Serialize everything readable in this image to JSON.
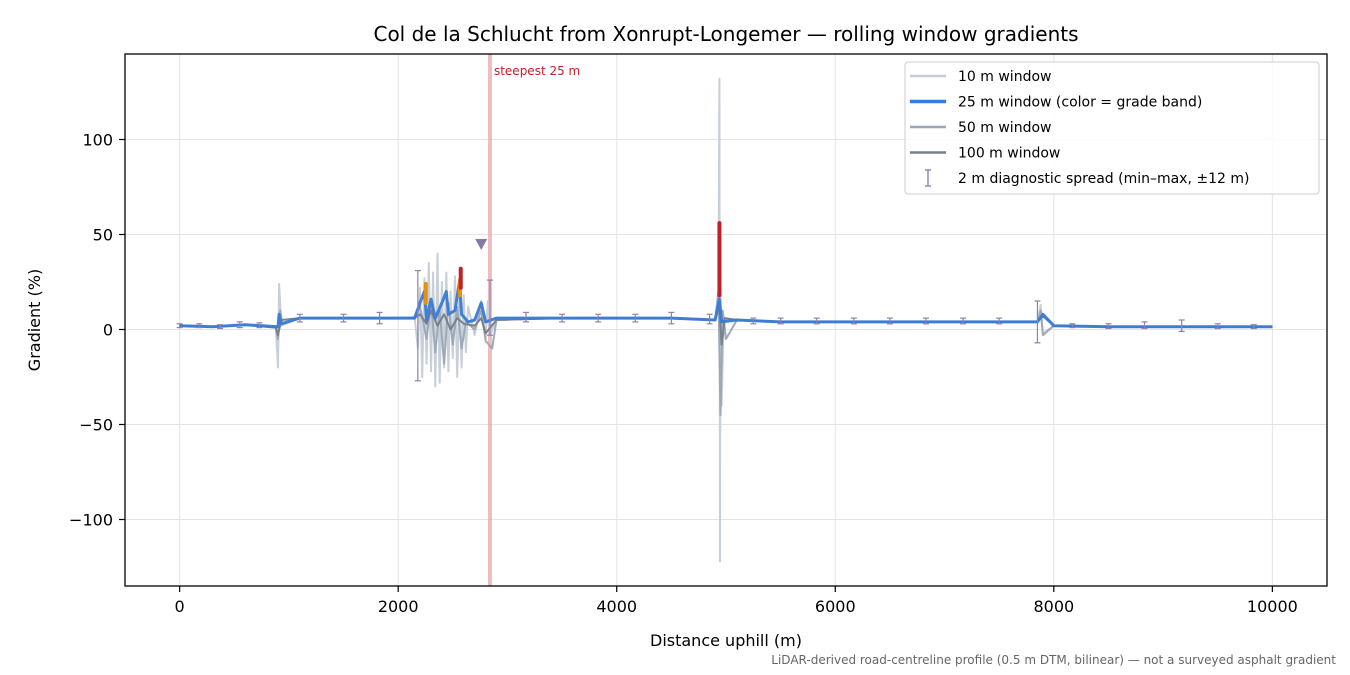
{
  "chart_data": {
    "type": "line",
    "title": "Col de la Schlucht from Xonrupt-Longemer — rolling window gradients",
    "xlabel": "Distance uphill (m)",
    "ylabel": "Gradient (%)",
    "xlim": [
      -500,
      10500
    ],
    "ylim": [
      -135,
      145
    ],
    "xticks": [
      0,
      2000,
      4000,
      6000,
      8000,
      10000
    ],
    "xtick_labels": [
      "0",
      "2000",
      "4000",
      "6000",
      "8000",
      "10000"
    ],
    "yticks": [
      100,
      50,
      0,
      -50,
      -100
    ],
    "ytick_labels": [
      "100",
      "50",
      "0",
      "−50",
      "−100"
    ],
    "grid": true,
    "legend_position": "top-right",
    "footnote": "LiDAR-derived road-centreline profile (0.5 m DTM, bilinear) — not a surveyed asphalt gradient",
    "annotations": [
      {
        "text": "steepest 25 m",
        "x": 2840,
        "type": "vertical-band",
        "color": "#e8a0a8"
      },
      {
        "text": "",
        "x": 2760,
        "y": 45,
        "type": "triangle-marker",
        "color": "#8878a8"
      }
    ],
    "series": [
      {
        "name": "10 m window",
        "color": "#c4ccd6",
        "width": 2,
        "points": [
          [
            0,
            2
          ],
          [
            300,
            1.5
          ],
          [
            600,
            2.5
          ],
          [
            880,
            1
          ],
          [
            900,
            -20
          ],
          [
            910,
            24
          ],
          [
            930,
            2
          ],
          [
            1100,
            6
          ],
          [
            1500,
            6
          ],
          [
            1900,
            6
          ],
          [
            2150,
            6.5
          ],
          [
            2180,
            -10
          ],
          [
            2200,
            22
          ],
          [
            2220,
            -25
          ],
          [
            2240,
            27
          ],
          [
            2260,
            -18
          ],
          [
            2280,
            35
          ],
          [
            2300,
            -22
          ],
          [
            2320,
            30
          ],
          [
            2340,
            -30
          ],
          [
            2360,
            40
          ],
          [
            2380,
            -28
          ],
          [
            2400,
            25
          ],
          [
            2420,
            -20
          ],
          [
            2440,
            30
          ],
          [
            2460,
            -22
          ],
          [
            2480,
            20
          ],
          [
            2500,
            -15
          ],
          [
            2520,
            28
          ],
          [
            2540,
            -25
          ],
          [
            2560,
            22
          ],
          [
            2580,
            -20
          ],
          [
            2600,
            18
          ],
          [
            2620,
            -12
          ],
          [
            2640,
            12
          ],
          [
            2700,
            -3
          ],
          [
            2760,
            15
          ],
          [
            2800,
            -5
          ],
          [
            2820,
            15
          ],
          [
            2850,
            -2
          ],
          [
            2900,
            6
          ],
          [
            3500,
            6
          ],
          [
            4000,
            6
          ],
          [
            4500,
            6
          ],
          [
            4900,
            5
          ],
          [
            4930,
            10
          ],
          [
            4940,
            132
          ],
          [
            4945,
            -122
          ],
          [
            4950,
            30
          ],
          [
            4960,
            -40
          ],
          [
            4980,
            6
          ],
          [
            5100,
            5
          ],
          [
            5500,
            4
          ],
          [
            6000,
            4
          ],
          [
            6500,
            4
          ],
          [
            7000,
            4
          ],
          [
            7500,
            4
          ],
          [
            7850,
            4
          ],
          [
            7880,
            13
          ],
          [
            7900,
            -2
          ],
          [
            8000,
            2
          ],
          [
            8500,
            1.5
          ],
          [
            9000,
            1.5
          ],
          [
            9500,
            1.5
          ],
          [
            10000,
            1.5
          ]
        ]
      },
      {
        "name": "25 m window (color = grade band)",
        "color": "#3a7bd5",
        "width": 3,
        "points": [
          [
            0,
            2
          ],
          [
            300,
            1.5
          ],
          [
            600,
            2.5
          ],
          [
            900,
            1.5
          ],
          [
            910,
            8
          ],
          [
            930,
            3
          ],
          [
            1100,
            6
          ],
          [
            1500,
            6
          ],
          [
            1900,
            6
          ],
          [
            2150,
            6
          ],
          [
            2200,
            14
          ],
          [
            2240,
            20
          ],
          [
            2260,
            5
          ],
          [
            2300,
            16
          ],
          [
            2340,
            6
          ],
          [
            2400,
            14
          ],
          [
            2440,
            20
          ],
          [
            2460,
            8
          ],
          [
            2520,
            10
          ],
          [
            2560,
            25
          ],
          [
            2580,
            8
          ],
          [
            2640,
            4
          ],
          [
            2700,
            5
          ],
          [
            2760,
            14
          ],
          [
            2800,
            4
          ],
          [
            2900,
            6
          ],
          [
            3500,
            6
          ],
          [
            4000,
            6
          ],
          [
            4500,
            6
          ],
          [
            4900,
            5
          ],
          [
            4940,
            16
          ],
          [
            4960,
            4
          ],
          [
            5100,
            5
          ],
          [
            5500,
            4
          ],
          [
            6000,
            4
          ],
          [
            6500,
            4
          ],
          [
            7000,
            4
          ],
          [
            7500,
            4
          ],
          [
            7850,
            4
          ],
          [
            7900,
            8
          ],
          [
            8000,
            2
          ],
          [
            8500,
            1.5
          ],
          [
            9000,
            1.5
          ],
          [
            9500,
            1.5
          ],
          [
            10000,
            1.5
          ]
        ]
      },
      {
        "name": "50 m window",
        "color": "#9aa6b4",
        "width": 2,
        "points": [
          [
            0,
            2
          ],
          [
            300,
            1.5
          ],
          [
            600,
            2.5
          ],
          [
            880,
            1
          ],
          [
            900,
            -5
          ],
          [
            920,
            10
          ],
          [
            940,
            3
          ],
          [
            1100,
            6
          ],
          [
            1500,
            6
          ],
          [
            1900,
            6
          ],
          [
            2150,
            6
          ],
          [
            2200,
            12
          ],
          [
            2260,
            -5
          ],
          [
            2300,
            14
          ],
          [
            2340,
            -12
          ],
          [
            2380,
            10
          ],
          [
            2420,
            -18
          ],
          [
            2460,
            14
          ],
          [
            2500,
            -8
          ],
          [
            2540,
            12
          ],
          [
            2580,
            -10
          ],
          [
            2620,
            4
          ],
          [
            2700,
            0
          ],
          [
            2760,
            10
          ],
          [
            2800,
            -6
          ],
          [
            2860,
            -10
          ],
          [
            2900,
            5
          ],
          [
            3500,
            6
          ],
          [
            4000,
            6
          ],
          [
            4500,
            6
          ],
          [
            4900,
            5
          ],
          [
            4930,
            20
          ],
          [
            4950,
            -45
          ],
          [
            4970,
            10
          ],
          [
            5000,
            -5
          ],
          [
            5100,
            5
          ],
          [
            5500,
            4
          ],
          [
            6000,
            4
          ],
          [
            6500,
            4
          ],
          [
            7000,
            4
          ],
          [
            7500,
            4
          ],
          [
            7850,
            4
          ],
          [
            7880,
            10
          ],
          [
            7900,
            -3
          ],
          [
            8000,
            2
          ],
          [
            8500,
            1.5
          ],
          [
            9000,
            1.5
          ],
          [
            9500,
            1.5
          ],
          [
            10000,
            1.5
          ]
        ]
      },
      {
        "name": "100 m window",
        "color": "#747e8c",
        "width": 2,
        "points": [
          [
            0,
            2
          ],
          [
            300,
            1.5
          ],
          [
            600,
            2.5
          ],
          [
            880,
            1
          ],
          [
            900,
            -3
          ],
          [
            930,
            5
          ],
          [
            1100,
            6
          ],
          [
            1500,
            6
          ],
          [
            1900,
            6
          ],
          [
            2150,
            6
          ],
          [
            2200,
            8
          ],
          [
            2260,
            3
          ],
          [
            2300,
            10
          ],
          [
            2360,
            2
          ],
          [
            2420,
            8
          ],
          [
            2480,
            0
          ],
          [
            2540,
            6
          ],
          [
            2600,
            3
          ],
          [
            2700,
            2
          ],
          [
            2760,
            6
          ],
          [
            2800,
            -2
          ],
          [
            2900,
            5
          ],
          [
            3500,
            6
          ],
          [
            4000,
            6
          ],
          [
            4500,
            6
          ],
          [
            4900,
            5
          ],
          [
            4940,
            12
          ],
          [
            4960,
            -8
          ],
          [
            4990,
            6
          ],
          [
            5100,
            5
          ],
          [
            5500,
            4
          ],
          [
            6000,
            4
          ],
          [
            6500,
            4
          ],
          [
            7000,
            4
          ],
          [
            7500,
            4
          ],
          [
            7850,
            4
          ],
          [
            7900,
            7
          ],
          [
            8000,
            2
          ],
          [
            8500,
            1.5
          ],
          [
            9000,
            1.5
          ],
          [
            9500,
            1.5
          ],
          [
            10000,
            1.5
          ]
        ]
      },
      {
        "name": "2 m diagnostic spread (min–max, ±12 m)",
        "type": "errorbar",
        "color": "#8e80b0",
        "points": [
          [
            0,
            1,
            3
          ],
          [
            180,
            1,
            3
          ],
          [
            370,
            0.5,
            2.5
          ],
          [
            550,
            1,
            4
          ],
          [
            730,
            1,
            3.5
          ],
          [
            1100,
            4,
            8
          ],
          [
            1500,
            4,
            8
          ],
          [
            1830,
            3,
            9
          ],
          [
            2180,
            -27,
            31
          ],
          [
            2840,
            -3,
            26
          ],
          [
            3170,
            4,
            9
          ],
          [
            3500,
            4,
            8
          ],
          [
            3830,
            4,
            8
          ],
          [
            4170,
            4,
            8
          ],
          [
            4500,
            3,
            9
          ],
          [
            4850,
            3,
            8
          ],
          [
            5250,
            3,
            6
          ],
          [
            5500,
            3,
            6
          ],
          [
            5830,
            3,
            6
          ],
          [
            6170,
            3,
            6
          ],
          [
            6500,
            3,
            6
          ],
          [
            6830,
            3,
            6
          ],
          [
            7170,
            3,
            6
          ],
          [
            7500,
            3,
            6
          ],
          [
            7850,
            -7,
            15
          ],
          [
            8170,
            1,
            3
          ],
          [
            8500,
            0.5,
            3
          ],
          [
            8830,
            0.5,
            4
          ],
          [
            9170,
            -1,
            5
          ],
          [
            9500,
            0.5,
            3
          ],
          [
            9830,
            0.5,
            2.5
          ]
        ]
      }
    ],
    "grade_band_highlights": [
      {
        "color": "#e8900c",
        "x": [
          2240,
          2265
        ],
        "y": [
          14,
          24
        ]
      },
      {
        "color": "#e8900c",
        "x": [
          2555,
          2575
        ],
        "y": [
          18,
          26
        ]
      },
      {
        "color": "#c0202a",
        "x": [
          2565,
          2580
        ],
        "y": [
          22,
          32
        ]
      },
      {
        "color": "#c0202a",
        "x": [
          4935,
          4945
        ],
        "y": [
          18,
          56
        ]
      }
    ]
  }
}
